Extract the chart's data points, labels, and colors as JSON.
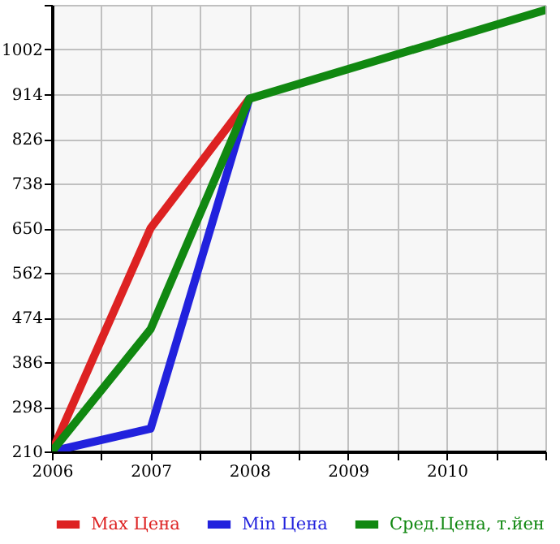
{
  "chart_data": {
    "type": "line",
    "x": [
      2006,
      2007,
      2008,
      2011
    ],
    "series": [
      {
        "name": "Max Цена",
        "color": "#dd2222",
        "values": [
          210,
          650,
          905,
          null
        ]
      },
      {
        "name": "Min Цена",
        "color": "#2222dd",
        "values": [
          210,
          255,
          905,
          null
        ]
      },
      {
        "name": "Сред.Цена, т.йен",
        "color": "#118811",
        "values": [
          210,
          451,
          905,
          1080
        ]
      }
    ],
    "xlim": [
      2006,
      2011
    ],
    "xticks": [
      2006,
      {
        "value": 2006.5,
        "label": null
      },
      2007,
      {
        "value": 2007.5,
        "label": null
      },
      2008,
      {
        "value": 2008.5,
        "label": null
      },
      2009,
      {
        "value": 2009.5,
        "label": null
      },
      2010,
      {
        "value": 2010.5,
        "label": null
      },
      {
        "value": 2011,
        "label": null
      }
    ],
    "ylim": [
      210,
      1090
    ],
    "yticks": [
      210,
      298,
      386,
      474,
      562,
      650,
      738,
      826,
      914,
      1002,
      {
        "value": 1090,
        "label": null
      }
    ],
    "grid": true,
    "legend": "bottom",
    "marker": "none",
    "line_style": "solid"
  }
}
